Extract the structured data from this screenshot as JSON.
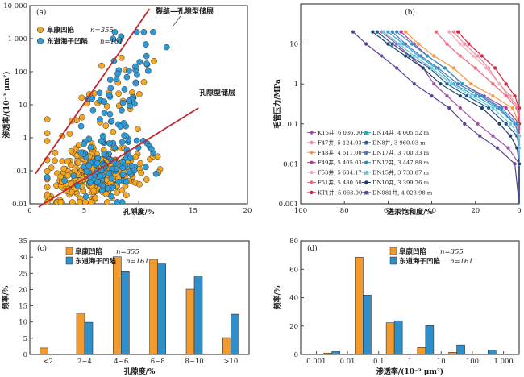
{
  "chart_data": [
    {
      "panel": "(a)",
      "type": "scatter",
      "xlabel": "孔隙度/%",
      "ylabel": "渗透率/(10⁻³ μm²)",
      "xlim": [
        0,
        20
      ],
      "ylim": [
        0.01,
        10000
      ],
      "yscale": "log",
      "xticks": [
        "0",
        "5",
        "10",
        "15",
        "20"
      ],
      "yticks": [
        "0.01",
        "0.1",
        "1",
        "10",
        "100",
        "1 000",
        "10 000"
      ],
      "series": [
        {
          "name": "阜康凹陷",
          "n_label": "n=355",
          "color": "#F5A623"
        },
        {
          "name": "东道海子凹陷",
          "n_label": "n=161",
          "color": "#2E9BD6"
        }
      ],
      "trendlines": [
        {
          "label": "裂缝—孔隙型储层",
          "color": "#C0282D",
          "from": [
            0.5,
            0.08
          ],
          "to": [
            11,
            8000
          ]
        },
        {
          "label": "孔隙型储层",
          "color": "#C0282D",
          "from": [
            0.8,
            0.008
          ],
          "to": [
            15.5,
            8
          ]
        }
      ]
    },
    {
      "panel": "(b)",
      "type": "line",
      "xlabel": "进汞饱和度/%",
      "ylabel": "毛管压力/MPa",
      "xlim": [
        100,
        0
      ],
      "ylim": [
        0.001,
        100
      ],
      "yscale": "log",
      "xticks": [
        "100",
        "80",
        "60",
        "40",
        "20",
        "0"
      ],
      "yticks": [
        "0.001",
        "0.01",
        "0.1",
        "1",
        "10"
      ],
      "legend_position": "bottom-left",
      "pressures": [
        20,
        10,
        5,
        2.5,
        1,
        0.5,
        0.25,
        0.1,
        0.05,
        0.025,
        0.01
      ],
      "series": [
        {
          "name": "KT5井, 6 036.00 m",
          "color": "#9C4FA6",
          "saturation": [
            63,
            56,
            50,
            44,
            39,
            33,
            27,
            19,
            12,
            5,
            0
          ]
        },
        {
          "name": "F47井, 5 124.03 m",
          "color": "#E8899F",
          "saturation": [
            30,
            25,
            19,
            14,
            9,
            5,
            0,
            0,
            0,
            0,
            0
          ]
        },
        {
          "name": "F48井, 4 511.00 m",
          "color": "#F39A3F",
          "saturation": [
            52,
            46,
            39,
            30,
            22,
            12,
            3,
            0,
            0,
            0,
            0
          ]
        },
        {
          "name": "F49井, 5 405.03 m",
          "color": "#B5399A",
          "saturation": [
            54,
            48,
            42,
            34,
            26,
            16,
            6,
            0,
            0,
            0,
            0
          ]
        },
        {
          "name": "F53井, 5 634.17 m",
          "color": "#F2A7B8",
          "saturation": [
            32,
            27,
            21,
            15,
            9,
            4,
            0,
            0,
            0,
            0,
            0
          ]
        },
        {
          "name": "F51井, 5 480.50 m",
          "color": "#EC6A80",
          "saturation": [
            38,
            33,
            27,
            20,
            12,
            6,
            1,
            0,
            0,
            0,
            0
          ]
        },
        {
          "name": "KT1井, 5 063.00 m",
          "color": "#D7263D",
          "saturation": [
            28,
            23,
            17,
            11,
            6,
            2,
            0,
            0,
            0,
            0,
            0
          ]
        },
        {
          "name": "DN14井, 4 005.52 m",
          "color": "#2AA9C9",
          "saturation": [
            60,
            53,
            46,
            38,
            30,
            20,
            10,
            2,
            0,
            0,
            0
          ]
        },
        {
          "name": "DN8井, 3 960.03 m",
          "color": "#1F5C8A",
          "saturation": [
            65,
            58,
            50,
            41,
            33,
            24,
            14,
            6,
            1,
            0,
            0
          ]
        },
        {
          "name": "DN17井, 3 700.33 m",
          "color": "#4A7BBE",
          "saturation": [
            58,
            52,
            45,
            37,
            28,
            18,
            9,
            2,
            0,
            0,
            0
          ]
        },
        {
          "name": "DN12井, 3 447.88 m",
          "color": "#2E8FBF",
          "saturation": [
            56,
            49,
            42,
            34,
            26,
            17,
            8,
            1,
            0,
            0,
            0
          ]
        },
        {
          "name": "DN15井, 3 733.87 m",
          "color": "#6FC3DD",
          "saturation": [
            62,
            55,
            48,
            40,
            31,
            22,
            12,
            4,
            0,
            0,
            0
          ]
        },
        {
          "name": "DN10井, 3 399.76 m",
          "color": "#1C3F6E",
          "saturation": [
            67,
            60,
            52,
            44,
            36,
            27,
            17,
            9,
            4,
            1,
            0
          ]
        },
        {
          "name": "DN081井, 4 023.98 m",
          "color": "#5A3E99",
          "saturation": [
            76,
            70,
            63,
            56,
            48,
            40,
            32,
            25,
            18,
            10,
            2
          ]
        }
      ]
    },
    {
      "panel": "(c)",
      "type": "bar",
      "xlabel": "孔隙度/%",
      "ylabel": "频率/%",
      "ylim": [
        0,
        35
      ],
      "yticks": [
        "0",
        "5",
        "10",
        "15",
        "20",
        "25",
        "30",
        "35"
      ],
      "categories": [
        "<2",
        "2~4",
        "4~6",
        "6~8",
        "8~10",
        ">10"
      ],
      "series": [
        {
          "name": "阜康凹陷",
          "n_label": "n=355",
          "color": "#F39A2E",
          "values": [
            2,
            12.7,
            30.1,
            29.3,
            20.1,
            5.2
          ]
        },
        {
          "name": "东道海子凹陷",
          "n_label": "n=161",
          "color": "#2F8FCB",
          "values": [
            0,
            9.9,
            25.5,
            27.9,
            24.2,
            12.4
          ]
        }
      ]
    },
    {
      "panel": "(d)",
      "type": "bar",
      "xlabel": "渗透率/(10⁻³ μm²)",
      "ylabel": "频率/%",
      "ylim": [
        0,
        80
      ],
      "yticks": [
        "0",
        "20",
        "40",
        "60",
        "80"
      ],
      "xscale": "log",
      "xticks": [
        "0.001",
        "0.01",
        "0.1",
        "1",
        "10",
        "100",
        "1 000"
      ],
      "categories": [
        "0.001~0.01",
        "0.01~0.1",
        "0.1~1",
        "1~10",
        "10~100",
        "100~1 000"
      ],
      "series": [
        {
          "name": "阜康凹陷",
          "n_label": "n=355",
          "color": "#F39A2E",
          "values": [
            1,
            68.5,
            22.3,
            4.9,
            1.5,
            0
          ]
        },
        {
          "name": "东道海子凹陷",
          "n_label": "n=161",
          "color": "#2F8FCB",
          "values": [
            2,
            41.8,
            23.7,
            20.3,
            6.7,
            3.2
          ]
        }
      ]
    }
  ]
}
